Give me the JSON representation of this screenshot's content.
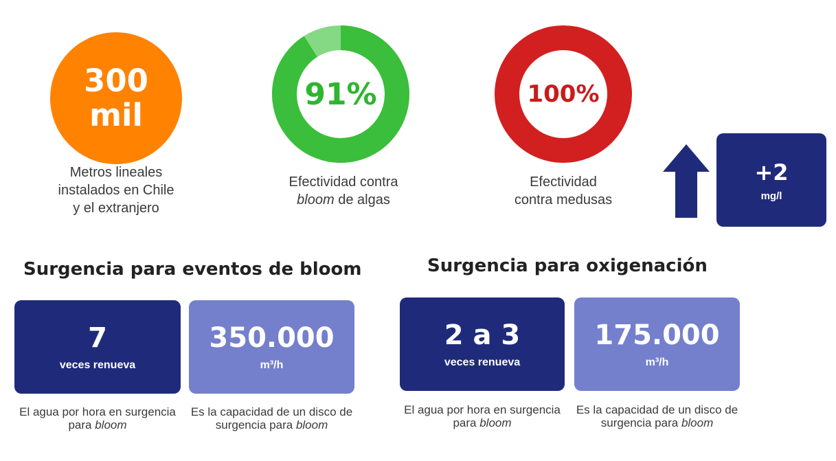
{
  "colors": {
    "orange": "#ff8200",
    "green": "#3bbe3b",
    "green_light": "#85d985",
    "red": "#d22020",
    "navy": "#1f2b7a",
    "periwinkle": "#7480cc"
  },
  "stat_installed": {
    "value_line1": "300",
    "value_line2": "mil",
    "caption_line1": "Metros lineales",
    "caption_line2": "instalados en Chile",
    "caption_line3": "y el extranjero"
  },
  "stat_algae": {
    "value": "91%",
    "fraction": 0.91,
    "caption_line1": "Efectividad contra",
    "caption_italic": "bloom",
    "caption_rest": " de algas"
  },
  "stat_jellyfish": {
    "value": "100%",
    "fraction": 1.0,
    "caption_line1": "Efectividad",
    "caption_line2": "contra medusas"
  },
  "stat_oxygen": {
    "arrow_icon": "up-arrow-icon",
    "value": "+2",
    "unit": "mg/l"
  },
  "section_bloom": {
    "title": "Surgencia para eventos de bloom",
    "card_renew": {
      "value": "7",
      "label": "veces renueva",
      "caption_text": "El agua por hora en surgencia para ",
      "caption_italic": "bloom"
    },
    "card_capacity": {
      "value": "350.000",
      "label": "m³/h",
      "caption_text": "Es la capacidad de un disco de surgencia para ",
      "caption_italic": "bloom"
    }
  },
  "section_oxygen": {
    "title": "Surgencia para oxigenación",
    "card_renew": {
      "value": "2 a 3",
      "label": "veces renueva",
      "caption_text": "El agua por hora en surgencia para ",
      "caption_italic": "bloom"
    },
    "card_capacity": {
      "value": "175.000",
      "label": "m³/h",
      "caption_text": "Es la capacidad de un disco de surgencia para ",
      "caption_italic": "bloom"
    }
  }
}
